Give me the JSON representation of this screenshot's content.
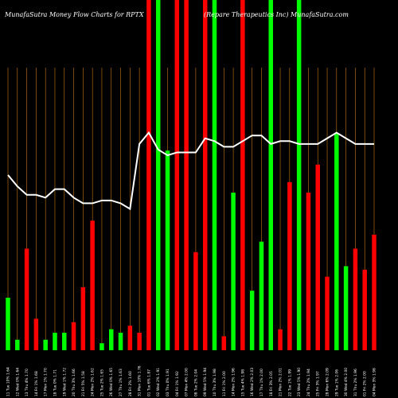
{
  "header": {
    "left_title": "MunafaSutra  Money Flow  Charts for RPTX",
    "right_title": "(Repare   Therapeutics Inc) MunafaSutra.com"
  },
  "chart_data": {
    "type": "bar",
    "title": "",
    "ylim": [
      0,
      100
    ],
    "colors": {
      "up": "#00ff00",
      "down": "#ff0000",
      "line": "#ffffff",
      "grid": "#c87a12",
      "background": "#000000"
    },
    "categories": [
      "11 Tue 10% 1.64",
      "12 Wed 0% 1.64",
      "13 Thu 4% 1.70",
      "14 Fri 1% 1.68",
      "17 Mon 1% 1.70",
      "18 Tue 0% 1.71",
      "19 Wed 1% 1.72",
      "20 Thu 3% 1.66",
      "21 Fri 5% 1.58",
      "24 Mon 2% 1.62",
      "25 Tue 2% 1.65",
      "26 Wed 0% 1.65",
      "27 Thu 1% 1.63",
      "28 Fri 2% 1.60",
      "31 Mon 10% 1.76",
      "01 Tue 6% 1.87",
      "02 Wed 2% 1.91",
      "03 Thu 0% 1.91",
      "04 Fri 1% 1.92",
      "07 Mon 4% 2.00",
      "08 Tue 2% 2.04",
      "09 Wed 5% 1.94",
      "10 Thu 3% 1.98",
      "11 Fri 1% 2.00",
      "14 Mon 2% 1.96",
      "15 Tue 4% 1.98",
      "16 Wed 2% 2.03",
      "17 Thu 1% 2.00",
      "18 Fri 3% 2.05",
      "21 Mon 2% 2.01",
      "22 Tue 1% 1.99",
      "23 Wed 5% 1.90",
      "24 Thu 2% 1.94",
      "25 Fri 3% 1.97",
      "28 Mon 6% 2.09",
      "29 Tue 1% 2.06",
      "30 Wed 4% 2.00",
      "31 Thu 2% 1.96",
      "01 Fri 2% 2.00",
      "04 Mon 3% 1.98"
    ],
    "colors_per_bar": [
      "up",
      "up",
      "down",
      "down",
      "up",
      "up",
      "up",
      "down",
      "down",
      "down",
      "up",
      "up",
      "up",
      "down",
      "down",
      "down",
      "up",
      "up",
      "down",
      "down",
      "down",
      "down",
      "up",
      "down",
      "up",
      "down",
      "up",
      "up",
      "up",
      "down",
      "down",
      "up",
      "down",
      "down",
      "down",
      "up",
      "up",
      "down",
      "down",
      "down"
    ],
    "values": [
      15,
      3,
      29,
      9,
      3,
      5,
      5,
      8,
      18,
      37,
      2,
      6,
      5,
      7,
      5,
      100,
      100,
      57,
      100,
      100,
      28,
      100,
      100,
      4,
      45,
      100,
      17,
      31,
      100,
      6,
      48,
      100,
      45,
      53,
      21,
      62,
      24,
      29,
      23,
      33
    ],
    "line": [
      62,
      58,
      55,
      55,
      54,
      57,
      57,
      54,
      52,
      52,
      53,
      53,
      52,
      50,
      73,
      77,
      71,
      69,
      70,
      70,
      70,
      75,
      74,
      72,
      72,
      74,
      76,
      76,
      73,
      74,
      74,
      73,
      73,
      73,
      75,
      77,
      75,
      73,
      73,
      73
    ]
  }
}
